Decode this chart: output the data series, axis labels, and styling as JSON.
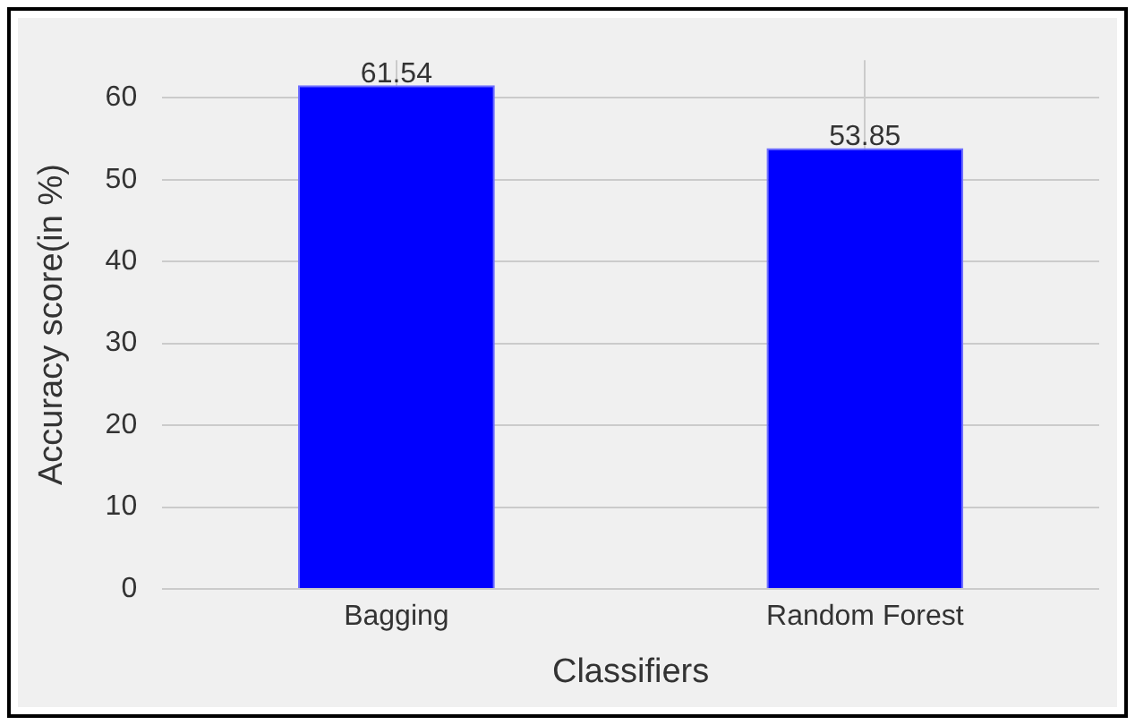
{
  "chart_data": {
    "type": "bar",
    "xlabel": "Classifiers",
    "ylabel": "Accuracy score(in %)",
    "categories": [
      "Bagging",
      "Random Forest"
    ],
    "values": [
      61.54,
      53.85
    ],
    "color": "#0000ff",
    "ylim": [
      0,
      64.6
    ],
    "yticks": [
      0,
      10,
      20,
      30,
      40,
      50,
      60
    ],
    "grid": true,
    "data_labels": true
  }
}
